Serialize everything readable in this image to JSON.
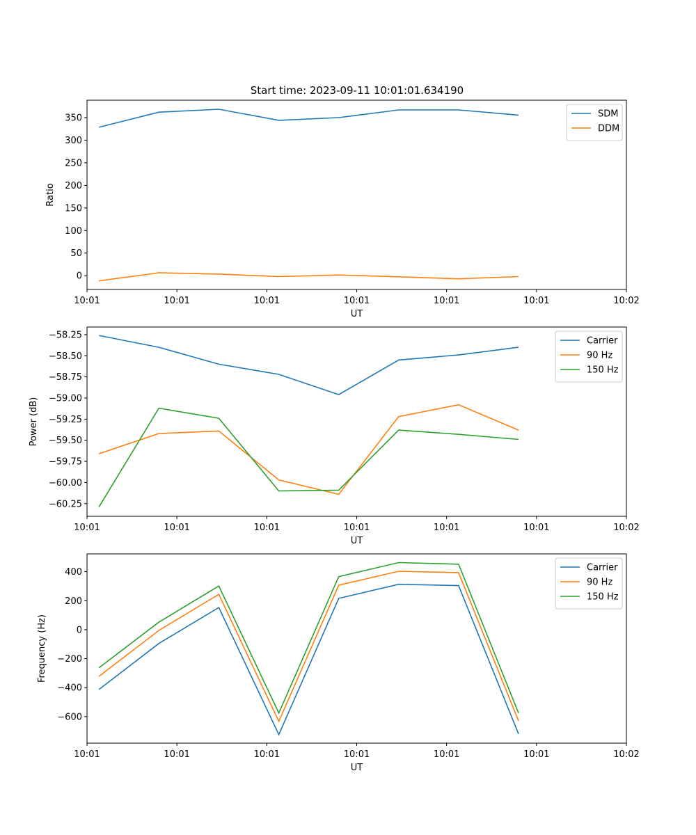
{
  "title": "Start time: 2023-09-11 10:01:01.634190",
  "colors": {
    "blue": "#1f77b4",
    "orange": "#ff7f0e",
    "green": "#2ca02c"
  },
  "chart_data": [
    {
      "type": "line",
      "title": "Start time: 2023-09-11 10:01:01.634190",
      "xlabel": "UT",
      "ylabel": "Ratio",
      "x": [
        1,
        2,
        3,
        4,
        5,
        6,
        7,
        8
      ],
      "xlim": [
        0.8,
        9.8
      ],
      "xticks": [
        {
          "v": 0.8,
          "label": "10:01"
        },
        {
          "v": 2.3,
          "label": "10:01"
        },
        {
          "v": 3.8,
          "label": "10:01"
        },
        {
          "v": 5.3,
          "label": "10:01"
        },
        {
          "v": 6.8,
          "label": "10:01"
        },
        {
          "v": 8.3,
          "label": "10:01"
        },
        {
          "v": 9.8,
          "label": "10:02"
        }
      ],
      "ylim": [
        -30.5,
        388.5
      ],
      "yticks": [
        0,
        50,
        100,
        150,
        200,
        250,
        300,
        350
      ],
      "legend": "top-right",
      "series": [
        {
          "name": "SDM",
          "color": "#1f77b4",
          "values": [
            328.5,
            362,
            368.5,
            344,
            350,
            367,
            367,
            355.5
          ]
        },
        {
          "name": "DDM",
          "color": "#ff7f0e",
          "values": [
            -11.5,
            6.5,
            3.5,
            -2,
            1.5,
            -2.5,
            -7,
            -2
          ]
        }
      ]
    },
    {
      "type": "line",
      "xlabel": "UT",
      "ylabel": "Power (dB)",
      "x": [
        1,
        2,
        3,
        4,
        5,
        6,
        7,
        8
      ],
      "xlim": [
        0.8,
        9.8
      ],
      "xticks": [
        {
          "v": 0.8,
          "label": "10:01"
        },
        {
          "v": 2.3,
          "label": "10:01"
        },
        {
          "v": 3.8,
          "label": "10:01"
        },
        {
          "v": 5.3,
          "label": "10:01"
        },
        {
          "v": 6.8,
          "label": "10:01"
        },
        {
          "v": 8.3,
          "label": "10:01"
        },
        {
          "v": 9.8,
          "label": "10:02"
        }
      ],
      "ylim": [
        -60.4,
        -58.16
      ],
      "yticks": [
        -60.25,
        -60.0,
        -59.75,
        -59.5,
        -59.25,
        -59.0,
        -58.75,
        -58.5,
        -58.25
      ],
      "ytick_labels": [
        "−60.25",
        "−60.00",
        "−59.75",
        "−59.50",
        "−59.25",
        "−59.00",
        "−58.75",
        "−58.50",
        "−58.25"
      ],
      "legend": "top-right",
      "series": [
        {
          "name": "Carrier",
          "color": "#1f77b4",
          "values": [
            -58.26,
            -58.4,
            -58.6,
            -58.72,
            -58.96,
            -58.55,
            -58.49,
            -58.4
          ]
        },
        {
          "name": "90 Hz",
          "color": "#ff7f0e",
          "values": [
            -59.66,
            -59.42,
            -59.39,
            -59.97,
            -60.14,
            -59.22,
            -59.08,
            -59.38
          ]
        },
        {
          "name": "150 Hz",
          "color": "#2ca02c",
          "values": [
            -60.29,
            -59.12,
            -59.24,
            -60.1,
            -60.09,
            -59.38,
            -59.43,
            -59.49
          ]
        }
      ]
    },
    {
      "type": "line",
      "xlabel": "UT",
      "ylabel": "Frequency (Hz)",
      "x": [
        1,
        2,
        3,
        4,
        5,
        6,
        7,
        8
      ],
      "xlim": [
        0.8,
        9.8
      ],
      "xticks": [
        {
          "v": 0.8,
          "label": "10:01"
        },
        {
          "v": 2.3,
          "label": "10:01"
        },
        {
          "v": 3.8,
          "label": "10:01"
        },
        {
          "v": 5.3,
          "label": "10:01"
        },
        {
          "v": 6.8,
          "label": "10:01"
        },
        {
          "v": 8.3,
          "label": "10:01"
        },
        {
          "v": 9.8,
          "label": "10:02"
        }
      ],
      "ylim": [
        -783,
        523
      ],
      "yticks": [
        -600,
        -400,
        -200,
        0,
        200,
        400
      ],
      "ytick_labels": [
        "−600",
        "−400",
        "−200",
        "0",
        "200",
        "400"
      ],
      "legend": "top-right",
      "series": [
        {
          "name": "Carrier",
          "color": "#1f77b4",
          "values": [
            -413,
            -95,
            153,
            -724,
            216,
            313,
            304,
            -719
          ]
        },
        {
          "name": "90 Hz",
          "color": "#ff7f0e",
          "values": [
            -322,
            -5,
            244,
            -632,
            307,
            403,
            394,
            -629
          ]
        },
        {
          "name": "150 Hz",
          "color": "#2ca02c",
          "values": [
            -263,
            52,
            301,
            -575,
            366,
            463,
            452,
            -575
          ]
        }
      ]
    }
  ]
}
